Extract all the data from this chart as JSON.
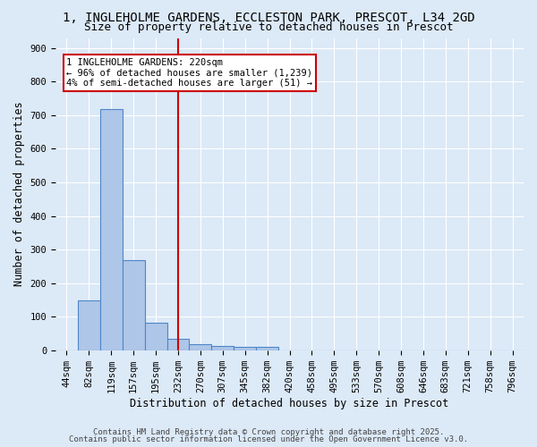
{
  "title_line1": "1, INGLEHOLME GARDENS, ECCLESTON PARK, PRESCOT, L34 2GD",
  "title_line2": "Size of property relative to detached houses in Prescot",
  "xlabel": "Distribution of detached houses by size in Prescot",
  "ylabel": "Number of detached properties",
  "categories": [
    "44sqm",
    "82sqm",
    "119sqm",
    "157sqm",
    "195sqm",
    "232sqm",
    "270sqm",
    "307sqm",
    "345sqm",
    "382sqm",
    "420sqm",
    "458sqm",
    "495sqm",
    "533sqm",
    "570sqm",
    "608sqm",
    "646sqm",
    "683sqm",
    "721sqm",
    "758sqm",
    "796sqm"
  ],
  "counts": [
    0,
    148,
    718,
    268,
    83,
    35,
    18,
    12,
    10,
    10,
    0,
    0,
    0,
    0,
    0,
    0,
    0,
    0,
    0,
    0,
    0
  ],
  "bar_color": "#aec6e8",
  "bar_edge_color": "#4e86c8",
  "vline_index": 5,
  "vline_color": "#cc0000",
  "annotation_text": "1 INGLEHOLME GARDENS: 220sqm\n← 96% of detached houses are smaller (1,239)\n4% of semi-detached houses are larger (51) →",
  "annotation_box_facecolor": "#ffffff",
  "annotation_box_edgecolor": "#cc0000",
  "ylim": [
    0,
    930
  ],
  "yticks": [
    0,
    100,
    200,
    300,
    400,
    500,
    600,
    700,
    800,
    900
  ],
  "background_color": "#dce9f7",
  "grid_color": "#ffffff",
  "footer_line1": "Contains HM Land Registry data © Crown copyright and database right 2025.",
  "footer_line2": "Contains public sector information licensed under the Open Government Licence v3.0.",
  "title_fontsize": 10,
  "subtitle_fontsize": 9,
  "axis_label_fontsize": 8.5,
  "tick_fontsize": 7.5,
  "annotation_fontsize": 7.5,
  "footer_fontsize": 6.5
}
